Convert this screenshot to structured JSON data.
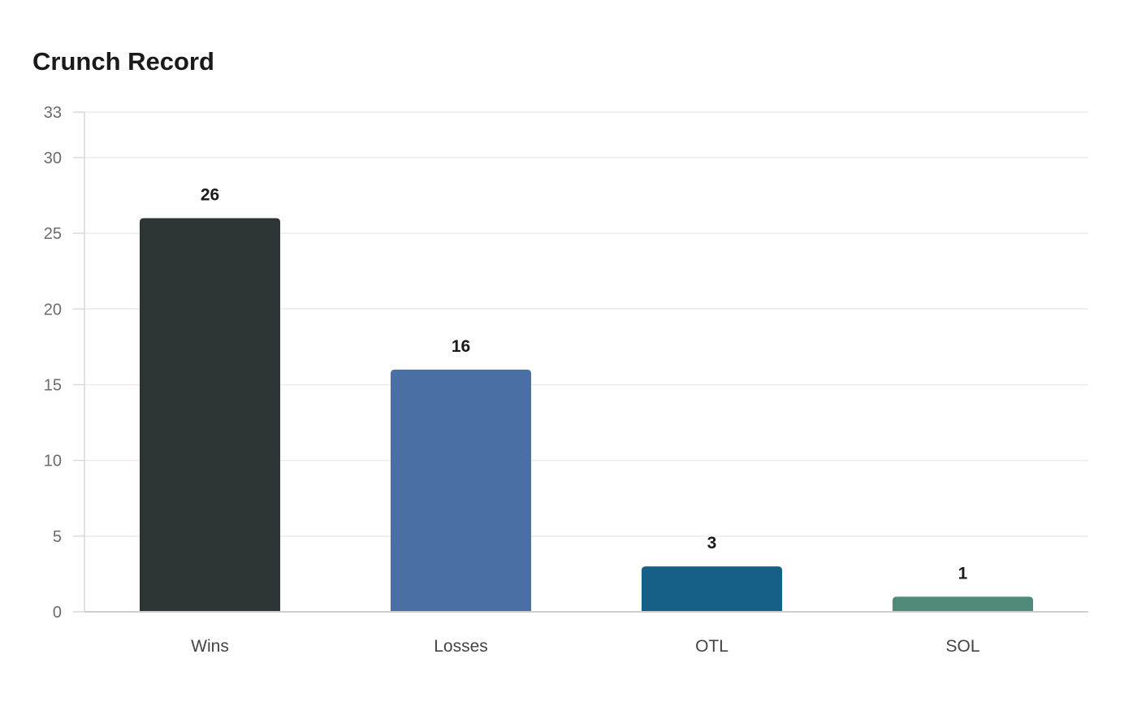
{
  "chart_data": {
    "type": "bar",
    "title": "Crunch Record",
    "categories": [
      "Wins",
      "Losses",
      "OTL",
      "SOL"
    ],
    "values": [
      26,
      16,
      3,
      1
    ],
    "colors": [
      "#2d3436",
      "#4a6fa5",
      "#166088",
      "#4f8a7a"
    ],
    "yticks": [
      0,
      5,
      10,
      15,
      20,
      25,
      30,
      33
    ],
    "ylim": [
      0,
      33
    ],
    "xlabel": "",
    "ylabel": "",
    "grid": true,
    "legend": "none"
  }
}
